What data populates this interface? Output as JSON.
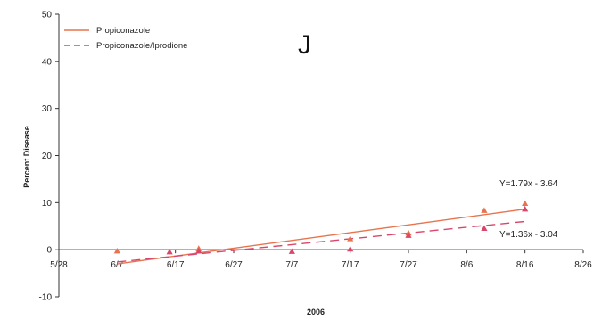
{
  "chart_data": {
    "type": "scatter",
    "panel_label": "J",
    "xlabel": "2006",
    "ylabel": "Percent Disease",
    "x_tick_labels": [
      "5/28",
      "6/7",
      "6/17",
      "6/27",
      "7/7",
      "7/17",
      "7/27",
      "8/6",
      "8/16",
      "8/26"
    ],
    "xlim": [
      "5/28",
      "8/26"
    ],
    "yticks": [
      -10,
      0,
      10,
      20,
      30,
      40,
      50
    ],
    "ylim": [
      -10,
      50
    ],
    "grid": false,
    "legend_position": "top-left",
    "series": [
      {
        "name": "Propiconazole",
        "color": "#e8734f",
        "line_style": "solid",
        "fit_equation": "Y=1.79x - 3.64",
        "fit_line": {
          "x": [
            "6/7",
            "8/16"
          ],
          "y": [
            -3.0,
            8.6
          ]
        },
        "points": [
          {
            "x": "6/7",
            "y": -0.3
          },
          {
            "x": "6/21",
            "y": 0.2
          },
          {
            "x": "7/17",
            "y": 2.3
          },
          {
            "x": "7/27",
            "y": 3.5
          },
          {
            "x": "8/9",
            "y": 8.3
          },
          {
            "x": "8/16",
            "y": 9.8
          }
        ]
      },
      {
        "name": "Propiconazole/Iprodione",
        "color": "#d9466a",
        "line_style": "dashed",
        "fit_equation": "Y=1.36x - 3.04",
        "fit_line": {
          "x": [
            "6/7",
            "8/16"
          ],
          "y": [
            -2.6,
            6.0
          ]
        },
        "points": [
          {
            "x": "6/16",
            "y": -0.5
          },
          {
            "x": "6/21",
            "y": -0.3
          },
          {
            "x": "7/7",
            "y": -0.4
          },
          {
            "x": "7/17",
            "y": 0.1
          },
          {
            "x": "7/27",
            "y": 3.0
          },
          {
            "x": "8/9",
            "y": 4.5
          },
          {
            "x": "8/16",
            "y": 8.6
          }
        ]
      }
    ]
  }
}
